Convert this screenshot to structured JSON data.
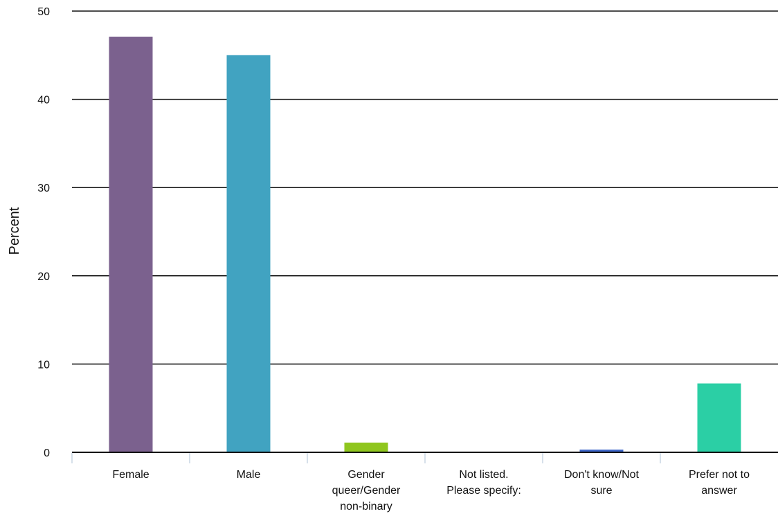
{
  "chart_data": {
    "type": "bar",
    "title": "",
    "xlabel": "",
    "ylabel": "Percent",
    "ylim": [
      0,
      50
    ],
    "yticks": [
      0,
      10,
      20,
      30,
      40,
      50
    ],
    "grid": true,
    "categories": [
      "Female",
      "Male",
      "Gender queer/Gender non-binary",
      "Not listed. Please specify:",
      "Don't know/Not sure",
      "Prefer not to answer"
    ],
    "category_lines": [
      [
        "Female"
      ],
      [
        "Male"
      ],
      [
        "Gender",
        "queer/Gender",
        "non-binary"
      ],
      [
        "Not listed.",
        "Please specify:"
      ],
      [
        "Don't know/Not",
        "sure"
      ],
      [
        "Prefer not to",
        "answer"
      ]
    ],
    "values": [
      47.1,
      45.0,
      1.1,
      0.0,
      0.3,
      7.8
    ],
    "colors": [
      "#7b618e",
      "#41a3c1",
      "#8fc61e",
      "#f0a52c",
      "#3b64c8",
      "#2bcfa5"
    ]
  }
}
